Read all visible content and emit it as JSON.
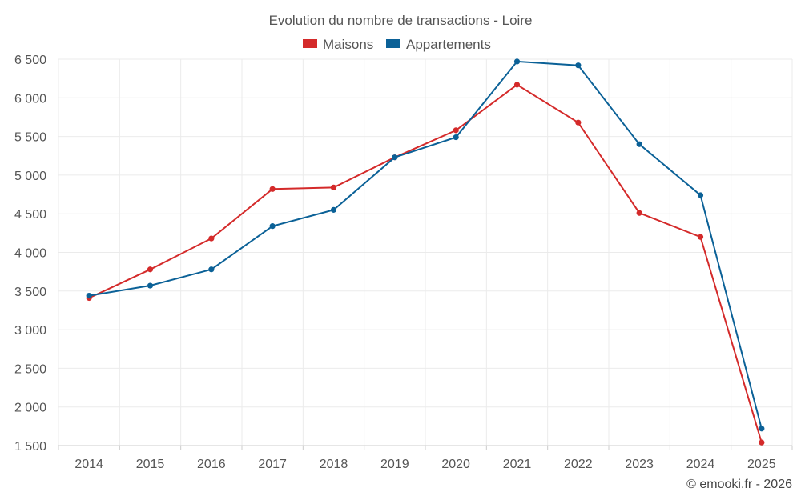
{
  "colors": {
    "maisons": "#d42a2a",
    "appartements": "#0b6197"
  },
  "chart_data": {
    "type": "line",
    "title": "Evolution du nombre de transactions - Loire",
    "xlabel": "",
    "ylabel": "",
    "categories": [
      "2014",
      "2015",
      "2016",
      "2017",
      "2018",
      "2019",
      "2020",
      "2021",
      "2022",
      "2023",
      "2024",
      "2025"
    ],
    "ylim": [
      1500,
      6500
    ],
    "yticks": [
      1500,
      2000,
      2500,
      3000,
      3500,
      4000,
      4500,
      5000,
      5500,
      6000,
      6500
    ],
    "ytick_labels": [
      "1 500",
      "2 000",
      "2 500",
      "3 000",
      "3 500",
      "4 000",
      "4 500",
      "5 000",
      "5 500",
      "6 000",
      "6 500"
    ],
    "grid": true,
    "legend_position": "top-center",
    "series": [
      {
        "name": "Maisons",
        "color_key": "maisons",
        "values": [
          3410,
          3780,
          4180,
          4820,
          4840,
          5230,
          5580,
          6170,
          5680,
          4510,
          4200,
          1540
        ]
      },
      {
        "name": "Appartements",
        "color_key": "appartements",
        "values": [
          3440,
          3570,
          3780,
          4340,
          4550,
          5230,
          5490,
          6470,
          6420,
          5400,
          4740,
          1720
        ]
      }
    ]
  },
  "footer": {
    "credit": "© emooki.fr - 2026"
  }
}
